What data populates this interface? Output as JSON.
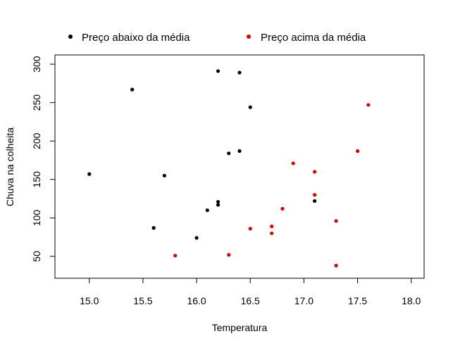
{
  "chart_data": {
    "type": "scatter",
    "xlabel": "Temperatura",
    "ylabel": "Chuva na colheita",
    "xlim": [
      14.68,
      18.12
    ],
    "ylim": [
      21.5,
      312
    ],
    "x_ticks": [
      15.0,
      15.5,
      16.0,
      16.5,
      17.0,
      17.5,
      18.0
    ],
    "x_tick_labels": [
      "15.0",
      "15.5",
      "16.0",
      "16.5",
      "17.0",
      "17.5",
      "18.0"
    ],
    "y_ticks": [
      50,
      100,
      150,
      200,
      250,
      300
    ],
    "y_tick_labels": [
      "50",
      "100",
      "150",
      "200",
      "250",
      "300"
    ],
    "grid": false,
    "legend_position": "top",
    "series": [
      {
        "name": "Preço abaixo da média",
        "color": "#000000",
        "points": [
          {
            "x": 15.0,
            "y": 157
          },
          {
            "x": 15.4,
            "y": 267
          },
          {
            "x": 15.6,
            "y": 87
          },
          {
            "x": 15.7,
            "y": 155
          },
          {
            "x": 16.0,
            "y": 74
          },
          {
            "x": 16.1,
            "y": 110
          },
          {
            "x": 16.2,
            "y": 291
          },
          {
            "x": 16.2,
            "y": 121
          },
          {
            "x": 16.2,
            "y": 117
          },
          {
            "x": 16.3,
            "y": 184
          },
          {
            "x": 16.4,
            "y": 289
          },
          {
            "x": 16.4,
            "y": 187
          },
          {
            "x": 16.5,
            "y": 244
          },
          {
            "x": 17.1,
            "y": 122
          }
        ]
      },
      {
        "name": "Preço acima da média",
        "color": "#df0000",
        "points": [
          {
            "x": 15.8,
            "y": 51
          },
          {
            "x": 16.3,
            "y": 52
          },
          {
            "x": 16.5,
            "y": 86
          },
          {
            "x": 16.7,
            "y": 89
          },
          {
            "x": 16.7,
            "y": 80
          },
          {
            "x": 16.8,
            "y": 112
          },
          {
            "x": 16.9,
            "y": 171
          },
          {
            "x": 17.1,
            "y": 160
          },
          {
            "x": 17.1,
            "y": 130
          },
          {
            "x": 17.3,
            "y": 96
          },
          {
            "x": 17.3,
            "y": 38
          },
          {
            "x": 17.5,
            "y": 187
          },
          {
            "x": 17.6,
            "y": 247
          }
        ]
      }
    ]
  }
}
